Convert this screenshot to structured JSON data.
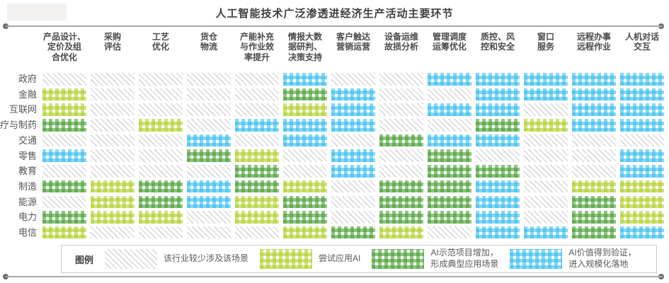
{
  "title": "人工智能技术广泛渗透进经济生产活动主要环节",
  "chart_data": {
    "type": "heatmap",
    "columns": [
      "产品设计、\n定价及组\n合优化",
      "采购\n评估",
      "工艺\n优化",
      "货仓\n物流",
      "产能补充\n与作业效\n率提升",
      "情报大数\n据研判、\n决策支持",
      "客户触达\n营销运营",
      "设备运维\n故损分析",
      "管理调度\n运筹优化",
      "质控、风\n控和安全",
      "窗口\n服务",
      "远程办事\n远程作业",
      "人机对话\n交互"
    ],
    "rows": [
      "政府",
      "金融",
      "互联网",
      "医疗与制药",
      "交通",
      "零售",
      "教育",
      "制造",
      "能源",
      "电力",
      "电信"
    ],
    "matrix": [
      [
        0,
        0,
        0,
        0,
        0,
        3,
        0,
        0,
        3,
        3,
        3,
        3,
        3
      ],
      [
        1,
        0,
        0,
        0,
        0,
        2,
        3,
        0,
        0,
        3,
        3,
        3,
        3
      ],
      [
        1,
        0,
        0,
        0,
        0,
        1,
        3,
        0,
        3,
        3,
        0,
        3,
        3
      ],
      [
        2,
        0,
        1,
        0,
        3,
        3,
        3,
        0,
        0,
        2,
        1,
        3,
        3
      ],
      [
        0,
        0,
        0,
        3,
        0,
        3,
        0,
        2,
        3,
        3,
        0,
        0,
        0
      ],
      [
        3,
        0,
        0,
        2,
        1,
        0,
        3,
        0,
        2,
        0,
        0,
        0,
        3
      ],
      [
        0,
        0,
        0,
        0,
        2,
        0,
        3,
        0,
        2,
        2,
        0,
        0,
        3
      ],
      [
        2,
        1,
        2,
        3,
        2,
        1,
        0,
        2,
        2,
        3,
        0,
        1,
        1
      ],
      [
        0,
        1,
        2,
        3,
        1,
        2,
        0,
        2,
        2,
        3,
        0,
        2,
        1
      ],
      [
        2,
        1,
        1,
        0,
        1,
        2,
        0,
        2,
        2,
        3,
        0,
        2,
        1
      ],
      [
        1,
        0,
        0,
        0,
        0,
        1,
        2,
        1,
        0,
        3,
        3,
        2,
        3
      ]
    ],
    "level_labels": [
      "该行业较少涉及该场景",
      "尝试应用AI",
      "AI示范项目增加，形成典型应用场景",
      "AI价值得到验证，进入规模化落地"
    ]
  },
  "legend": {
    "label": "图例",
    "items": [
      {
        "level": 0,
        "text": "该行业较少涉及该场景"
      },
      {
        "level": 1,
        "text": "尝试应用AI"
      },
      {
        "level": 2,
        "text": "AI示范项目增加，\n形成典型应用场景"
      },
      {
        "level": 3,
        "text": "AI价值得到验证，\n进入规模化落地"
      }
    ]
  },
  "colors": {
    "none_hatch": "#d9d9d9",
    "trial_lime": "#b1d02c",
    "demo_green": "#49a034",
    "scale_blue": "#38bef0"
  }
}
